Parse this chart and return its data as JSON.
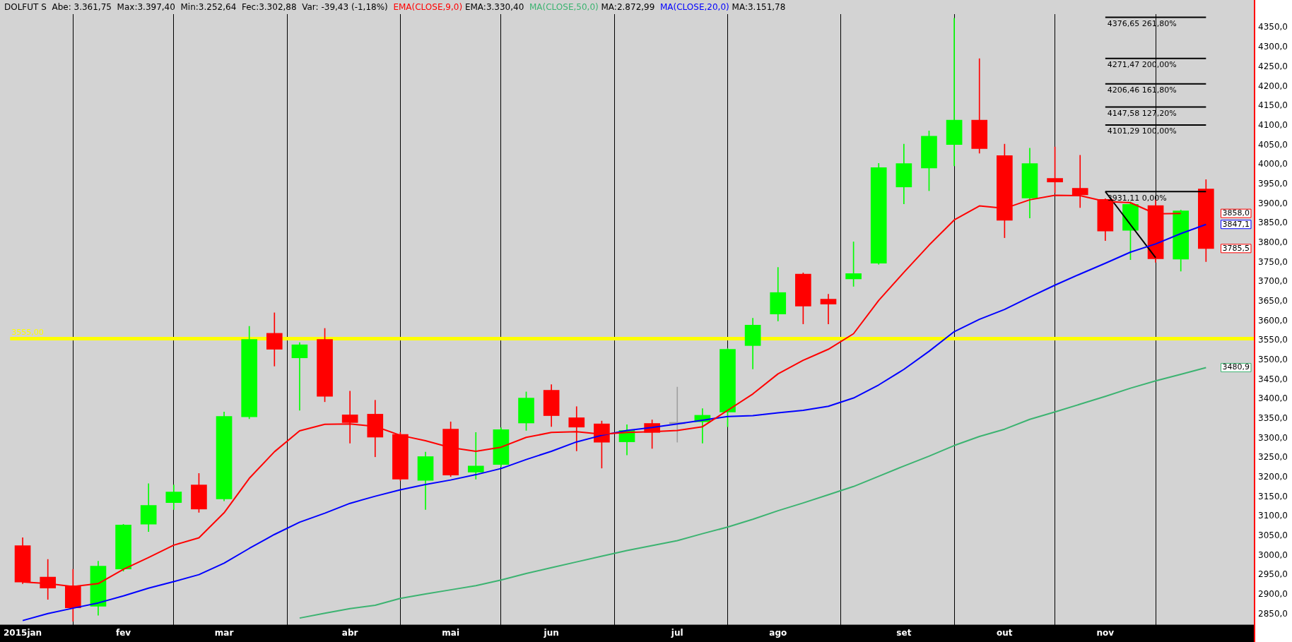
{
  "chart_data": {
    "type": "candlestick",
    "title": "DOLFUT S  Abe: 3.361,75  Max:3.397,40  Min:3.252,64  Fec:3.302,88  Var: -39,43 (-1,18%)",
    "categories": [
      "2015jan",
      null,
      null,
      null,
      "fev",
      null,
      null,
      null,
      "mar",
      null,
      null,
      null,
      null,
      "abr",
      null,
      null,
      null,
      "mai",
      null,
      null,
      null,
      "jun",
      null,
      null,
      null,
      null,
      "jul",
      null,
      null,
      null,
      "ago",
      null,
      null,
      null,
      null,
      "set",
      null,
      null,
      null,
      "out",
      null,
      null,
      null,
      "nov",
      null,
      null,
      null,
      null
    ],
    "ohlc": [
      [
        3025.6,
        3045.5,
        2928.0,
        2932.3
      ],
      [
        2944.9,
        2990.0,
        2888.0,
        2916.6
      ],
      [
        2922.8,
        2964.8,
        2831.7,
        2866.3
      ],
      [
        2870.5,
        2985.8,
        2847.4,
        2973.2
      ],
      [
        2965.8,
        3080.0,
        2960.0,
        3078.0
      ],
      [
        3080.1,
        3183.9,
        3061.2,
        3128.3
      ],
      [
        3135.6,
        3180.7,
        3117.8,
        3162.9
      ],
      [
        3180.7,
        3210.1,
        3110.5,
        3118.9
      ],
      [
        3145.1,
        3367.3,
        3140.0,
        3355.8
      ],
      [
        3354.8,
        3586.4,
        3350.0,
        3552.8
      ],
      [
        3568.6,
        3621.0,
        3484.7,
        3527.7
      ],
      [
        3505.7,
        3545.0,
        3371.5,
        3539.2
      ],
      [
        3552.8,
        3581.1,
        3393.5,
        3407.1
      ],
      [
        3360.0,
        3420.8,
        3287.6,
        3340.1
      ],
      [
        3361.75,
        3397.4,
        3252.64,
        3302.88
      ],
      [
        3309.7,
        3315.0,
        3192.0,
        3195.4
      ],
      [
        3192.3,
        3264.6,
        3117.8,
        3253.2
      ],
      [
        3323.3,
        3342.1,
        3202.0,
        3205.9
      ],
      [
        3213.4,
        3314.9,
        3195.4,
        3229.1
      ],
      [
        3233.2,
        3327.0,
        3227.0,
        3322.2
      ],
      [
        3339.0,
        3418.7,
        3320.1,
        3402.9
      ],
      [
        3422.9,
        3437.5,
        3330.0,
        3357.9
      ],
      [
        3352.6,
        3381.0,
        3267.7,
        3328.5
      ],
      [
        3336.9,
        3344.2,
        3223.7,
        3289.9
      ],
      [
        3290.9,
        3334.8,
        3257.2,
        3320.1
      ],
      [
        3338.0,
        3347.0,
        3274.0,
        3314.9
      ],
      [
        3337.0,
        3431.0,
        3290.0,
        3337.0
      ],
      [
        3342.2,
        3375.7,
        3287.6,
        3358.9
      ],
      [
        3367.3,
        3530.0,
        3329.6,
        3527.7
      ],
      [
        3537.1,
        3607.0,
        3477.4,
        3589.5
      ],
      [
        3617.9,
        3737.1,
        3600.0,
        3672.8
      ],
      [
        3720.2,
        3723.0,
        3592.6,
        3637.9
      ],
      [
        3655.9,
        3668.5,
        3592.6,
        3643.2
      ],
      [
        3707.6,
        3802.5,
        3688.6,
        3721.3
      ],
      [
        3747.7,
        4003.0,
        3745.0,
        3992.4
      ],
      [
        3942.8,
        4052.5,
        3899.6,
        4002.9
      ],
      [
        3991.3,
        4086.3,
        3933.3,
        4072.6
      ],
      [
        4051.5,
        4374.3,
        3996.6,
        4113.7
      ],
      [
        4113.7,
        4270.9,
        4029.3,
        4040.9
      ],
      [
        4023.0,
        4052.5,
        3813.0,
        3857.4
      ],
      [
        3914.3,
        4042.0,
        3863.7,
        4002.9
      ],
      [
        3965.0,
        4045.1,
        3928.0,
        3955.5
      ],
      [
        3939.6,
        4024.0,
        3890.0,
        3922.8
      ],
      [
        3911.2,
        3913.0,
        3805.7,
        3829.9
      ],
      [
        3832.0,
        3904.8,
        3757.0,
        3898.5
      ],
      [
        3895.3,
        3910.1,
        3750.0,
        3759.3
      ],
      [
        3758.2,
        3884.0,
        3727.6,
        3881.6
      ],
      [
        3937.5,
        3961.8,
        3751.9,
        3785.5
      ]
    ],
    "colors": [
      "#ff0000",
      "#ff0000",
      "#ff0000",
      "#00ff00",
      "#00ff00",
      "#00ff00",
      "#00ff00",
      "#ff0000",
      "#00ff00",
      "#00ff00",
      "#ff0000",
      "#00ff00",
      "#ff0000",
      "#ff0000",
      "#ff0000",
      "#ff0000",
      "#00ff00",
      "#ff0000",
      "#00ff00",
      "#00ff00",
      "#00ff00",
      "#ff0000",
      "#ff0000",
      "#ff0000",
      "#00ff00",
      "#ff0000",
      "#a0a0a0",
      "#00ff00",
      "#00ff00",
      "#00ff00",
      "#00ff00",
      "#ff0000",
      "#ff0000",
      "#00ff00",
      "#00ff00",
      "#00ff00",
      "#00ff00",
      "#00ff00",
      "#ff0000",
      "#ff0000",
      "#00ff00",
      "#ff0000",
      "#ff0000",
      "#ff0000",
      "#00ff00",
      "#ff0000",
      "#00ff00",
      "#ff0000"
    ],
    "series": [
      {
        "type": "line",
        "name": "EMA(CLOSE,9,0)",
        "color": "#ff0000",
        "values": [
          2932.3,
          2928.3,
          2920.8,
          2928.3,
          2964.8,
          2995.2,
          3026.6,
          3045.5,
          3109.4,
          3197.5,
          3265.6,
          3319.1,
          3335.8,
          3336.9,
          3330.4,
          3307.6,
          3293.9,
          3276.1,
          3266.7,
          3277.2,
          3302.3,
          3314.9,
          3317.0,
          3310.7,
          3314.9,
          3317.0,
          3320.1,
          3329.6,
          3371.5,
          3413.4,
          3464.8,
          3499.4,
          3527.7,
          3567.5,
          3652.7,
          3724.4,
          3794.1,
          3858.4,
          3894.3,
          3888.0,
          3910.1,
          3921.7,
          3920.7,
          3905.9,
          3902.7,
          3874.2,
          3875.3,
          null
        ]
      },
      {
        "type": "line",
        "name": "MA(CLOSE,50,0)",
        "color": "#3cb371",
        "values": [
          null,
          null,
          null,
          null,
          null,
          null,
          null,
          null,
          null,
          null,
          null,
          2840.1,
          2852.6,
          2864.3,
          2873.0,
          2890.4,
          2901.9,
          2912.4,
          2922.9,
          2937.5,
          2954.3,
          2969.0,
          2983.7,
          2998.3,
          3013.0,
          3025.6,
          3038.2,
          3056.0,
          3072.8,
          3092.7,
          3114.7,
          3134.6,
          3155.6,
          3176.7,
          3202.9,
          3229.1,
          3254.3,
          3281.5,
          3304.6,
          3323.3,
          3348.4,
          3367.3,
          3387.2,
          3407.1,
          3428.1,
          3447.0,
          3463.7,
          3480.9
        ]
      },
      {
        "type": "line",
        "name": "MA(CLOSE,20,0)",
        "color": "#0000ff",
        "values": [
          2833.8,
          2851.6,
          2865.4,
          2878.9,
          2896.7,
          2916.6,
          2933.4,
          2951.2,
          2980.6,
          3018.3,
          3054.0,
          3085.3,
          3108.4,
          3133.6,
          3151.8,
          3168.1,
          3181.8,
          3193.3,
          3206.9,
          3222.7,
          3245.7,
          3266.7,
          3290.8,
          3307.6,
          3320.1,
          3327.5,
          3336.9,
          3346.3,
          3355.8,
          3357.9,
          3365.2,
          3371.5,
          3382.0,
          3403.0,
          3436.5,
          3476.3,
          3522.5,
          3572.8,
          3604.2,
          3629.5,
          3661.1,
          3691.7,
          3720.2,
          3747.7,
          3776.1,
          3797.2,
          3823.6,
          3847.1
        ]
      },
      {
        "type": "line",
        "name": "4376,65 261,80%",
        "color": "#000000",
        "values": [
          null,
          null,
          null,
          null,
          null,
          null,
          null,
          null,
          null,
          null,
          null,
          null,
          null,
          null,
          null,
          null,
          null,
          null,
          null,
          null,
          null,
          null,
          null,
          null,
          null,
          null,
          null,
          null,
          null,
          null,
          null,
          null,
          null,
          null,
          null,
          null,
          null,
          null,
          null,
          null,
          null,
          null,
          null,
          4376.65,
          4376.65,
          4376.65,
          4376.65,
          4376.65
        ]
      },
      {
        "type": "line",
        "name": "4271,47 200,00%",
        "color": "#000000",
        "values": [
          null,
          null,
          null,
          null,
          null,
          null,
          null,
          null,
          null,
          null,
          null,
          null,
          null,
          null,
          null,
          null,
          null,
          null,
          null,
          null,
          null,
          null,
          null,
          null,
          null,
          null,
          null,
          null,
          null,
          null,
          null,
          null,
          null,
          null,
          null,
          null,
          null,
          null,
          null,
          null,
          null,
          null,
          null,
          4271.47,
          4271.47,
          4271.47,
          4271.47,
          4271.47
        ]
      },
      {
        "type": "line",
        "name": "4206,46 161,80%",
        "color": "#000000",
        "values": [
          null,
          null,
          null,
          null,
          null,
          null,
          null,
          null,
          null,
          null,
          null,
          null,
          null,
          null,
          null,
          null,
          null,
          null,
          null,
          null,
          null,
          null,
          null,
          null,
          null,
          null,
          null,
          null,
          null,
          null,
          null,
          null,
          null,
          null,
          null,
          null,
          null,
          null,
          null,
          null,
          null,
          null,
          null,
          4206.46,
          4206.46,
          4206.46,
          4206.46,
          4206.46
        ]
      },
      {
        "type": "line",
        "name": "4147,58 127,20%",
        "color": "#000000",
        "values": [
          null,
          null,
          null,
          null,
          null,
          null,
          null,
          null,
          null,
          null,
          null,
          null,
          null,
          null,
          null,
          null,
          null,
          null,
          null,
          null,
          null,
          null,
          null,
          null,
          null,
          null,
          null,
          null,
          null,
          null,
          null,
          null,
          null,
          null,
          null,
          null,
          null,
          null,
          null,
          null,
          null,
          null,
          null,
          4147.58,
          4147.58,
          4147.58,
          4147.58,
          4147.58
        ]
      },
      {
        "type": "line",
        "name": "4101,29 100,00%",
        "color": "#000000",
        "values": [
          null,
          null,
          null,
          null,
          null,
          null,
          null,
          null,
          null,
          null,
          null,
          null,
          null,
          null,
          null,
          null,
          null,
          null,
          null,
          null,
          null,
          null,
          null,
          null,
          null,
          null,
          null,
          null,
          null,
          null,
          null,
          null,
          null,
          null,
          null,
          null,
          null,
          null,
          null,
          null,
          null,
          null,
          null,
          4101.29,
          4101.29,
          4101.29,
          4101.29,
          4101.29
        ]
      },
      {
        "type": "line",
        "name": "3931,11 0,00%",
        "color": "#000000",
        "values": [
          null,
          null,
          null,
          null,
          null,
          null,
          null,
          null,
          null,
          null,
          null,
          null,
          null,
          null,
          null,
          null,
          null,
          null,
          null,
          null,
          null,
          null,
          null,
          null,
          null,
          null,
          null,
          null,
          null,
          null,
          null,
          null,
          null,
          null,
          null,
          null,
          null,
          null,
          null,
          null,
          null,
          null,
          null,
          3931.11,
          3931.11,
          3931.11,
          3931.11,
          3931.11
        ]
      },
      {
        "type": "line",
        "color": "#000000",
        "values": [
          null,
          null,
          null,
          null,
          null,
          null,
          null,
          null,
          null,
          null,
          null,
          null,
          null,
          null,
          null,
          null,
          null,
          null,
          null,
          null,
          null,
          null,
          null,
          null,
          null,
          null,
          null,
          null,
          null,
          null,
          null,
          null,
          null,
          null,
          null,
          null,
          null,
          null,
          null,
          null,
          null,
          null,
          null,
          3931.11,
          null,
          3762.0,
          null,
          null
        ]
      }
    ],
    "ylim": [
      2823,
      4385
    ],
    "yticks": [
      {
        "value": 2850,
        "label": "2850,0"
      },
      {
        "value": 2900,
        "label": "2900,0"
      },
      {
        "value": 2950,
        "label": "2950,0"
      },
      {
        "value": 3000,
        "label": "3000,0"
      },
      {
        "value": 3050,
        "label": "3050,0"
      },
      {
        "value": 3100,
        "label": "3100,0"
      },
      {
        "value": 3150,
        "label": "3150,0"
      },
      {
        "value": 3200,
        "label": "3200,0"
      },
      {
        "value": 3250,
        "label": "3250,0"
      },
      {
        "value": 3300,
        "label": "3300,0"
      },
      {
        "value": 3350,
        "label": "3350,0"
      },
      {
        "value": 3400,
        "label": "3400,0"
      },
      {
        "value": 3450,
        "label": "3450,0"
      },
      {
        "value": 3500,
        "label": "3500,0"
      },
      {
        "value": 3550,
        "label": "3550,0"
      },
      {
        "value": 3600,
        "label": "3600,0"
      },
      {
        "value": 3650,
        "label": "3650,0"
      },
      {
        "value": 3700,
        "label": "3700,0"
      },
      {
        "value": 3750,
        "label": "3750,0"
      },
      {
        "value": 3800,
        "label": "3800,0"
      },
      {
        "value": 3850,
        "label": "3850,0"
      },
      {
        "value": 3900,
        "label": "3900,0"
      },
      {
        "value": 3950,
        "label": "3950,0"
      },
      {
        "value": 4000,
        "label": "4000,0"
      },
      {
        "value": 4050,
        "label": "4050,0"
      },
      {
        "value": 4100,
        "label": "4100,0"
      },
      {
        "value": 4150,
        "label": "4150,0"
      },
      {
        "value": 4200,
        "label": "4200,0"
      },
      {
        "value": 4250,
        "label": "4250,0"
      },
      {
        "value": 4300,
        "label": "4300,0"
      },
      {
        "value": 4350,
        "label": "4350,0"
      }
    ],
    "ref_lines": [
      {
        "axis": "y",
        "value": 3555,
        "label": "3555,00",
        "color": "#ffff00"
      }
    ],
    "annotations": [
      "EMA:3.330,40",
      "MA:2.872,99",
      "MA:3.151,78",
      "3858,0",
      "3480,9",
      "3847,1",
      "3785,5"
    ],
    "grid": "x",
    "legend": "top left"
  }
}
